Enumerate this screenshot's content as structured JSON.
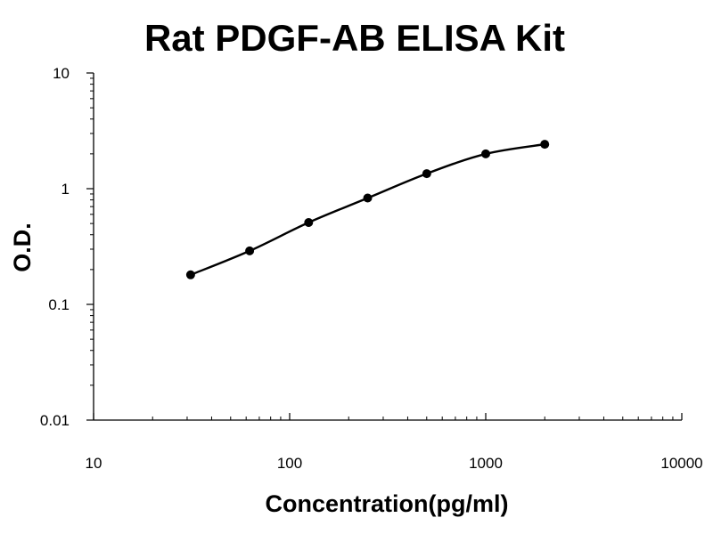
{
  "chart_data": {
    "type": "scatter",
    "title": "Rat PDGF-AB ELISA Kit",
    "xlabel": "Concentration(pg/ml)",
    "ylabel": "O.D.",
    "x_scale": "log",
    "y_scale": "log",
    "xlim": [
      10,
      10000
    ],
    "ylim": [
      0.01,
      10
    ],
    "x_ticks": [
      "10",
      "100",
      "1000",
      "10000"
    ],
    "y_ticks": [
      "0.01",
      "0.1",
      "1",
      "10"
    ],
    "grid": false,
    "legend": "none",
    "series": [
      {
        "x": [
          31.25,
          62.5,
          125,
          250,
          500,
          1000,
          2000
        ],
        "y": [
          0.18,
          0.29,
          0.51,
          0.83,
          1.35,
          2.0,
          2.42
        ]
      }
    ],
    "fit_curve": true,
    "colors": {
      "marker": "#000000",
      "line": "#000000"
    }
  }
}
